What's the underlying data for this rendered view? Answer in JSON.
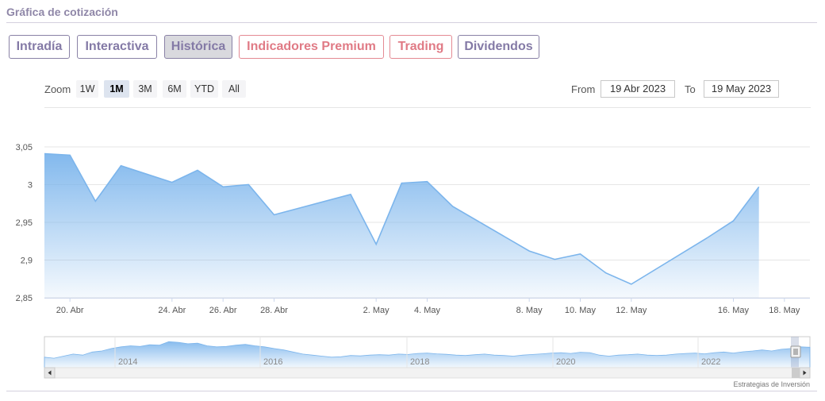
{
  "page": {
    "section_title": "Gráfica de cotización",
    "credit": "Estrategias de Inversión"
  },
  "tabs": [
    {
      "label": "Intradía",
      "color": "purple",
      "active": false
    },
    {
      "label": "Interactiva",
      "color": "purple",
      "active": false
    },
    {
      "label": "Histórica",
      "color": "purple",
      "active": true
    },
    {
      "label": "Indicadores Premium",
      "color": "red",
      "active": false
    },
    {
      "label": "Trading",
      "color": "red",
      "active": false
    },
    {
      "label": "Dividendos",
      "color": "purple",
      "active": false
    }
  ],
  "zoom": {
    "label": "Zoom",
    "buttons": [
      "1W",
      "1M",
      "3M",
      "6M",
      "YTD",
      "All"
    ],
    "active": "1M"
  },
  "range": {
    "from_label": "From",
    "from_value": "19 Abr 2023",
    "to_label": "To",
    "to_value": "19 May 2023"
  },
  "colors": {
    "line": "#7cb5ec",
    "fill_top": "#7cb5ec",
    "fill_bottom": "#ffffff",
    "grid": "#e6e6e6"
  },
  "chart_data": {
    "type": "area",
    "x_start": "2023-04-19",
    "x_end": "2023-05-19",
    "ylim": [
      2.85,
      3.05
    ],
    "yticks": [
      2.85,
      2.9,
      2.95,
      3,
      3.05
    ],
    "ytick_labels": [
      "2,85",
      "2,9",
      "2,95",
      "3",
      "3,05"
    ],
    "xticks": [
      {
        "date": "2023-04-20",
        "label": "20. Abr"
      },
      {
        "date": "2023-04-24",
        "label": "24. Abr"
      },
      {
        "date": "2023-04-26",
        "label": "26. Abr"
      },
      {
        "date": "2023-04-28",
        "label": "28. Abr"
      },
      {
        "date": "2023-05-02",
        "label": "2. May"
      },
      {
        "date": "2023-05-04",
        "label": "4. May"
      },
      {
        "date": "2023-05-08",
        "label": "8. May"
      },
      {
        "date": "2023-05-10",
        "label": "10. May"
      },
      {
        "date": "2023-05-12",
        "label": "12. May"
      },
      {
        "date": "2023-05-16",
        "label": "16. May"
      },
      {
        "date": "2023-05-18",
        "label": "18. May"
      }
    ],
    "series": [
      {
        "points": [
          [
            "2023-04-19",
            3.041
          ],
          [
            "2023-04-20",
            3.039
          ],
          [
            "2023-04-21",
            2.978
          ],
          [
            "2023-04-22",
            3.025
          ],
          [
            "2023-04-24",
            3.003
          ],
          [
            "2023-04-25",
            3.019
          ],
          [
            "2023-04-26",
            2.997
          ],
          [
            "2023-04-27",
            3.0
          ],
          [
            "2023-04-28",
            2.96
          ],
          [
            "2023-05-01",
            2.987
          ],
          [
            "2023-05-02",
            2.921
          ],
          [
            "2023-05-03",
            3.002
          ],
          [
            "2023-05-04",
            3.004
          ],
          [
            "2023-05-05",
            2.971
          ],
          [
            "2023-05-08",
            2.912
          ],
          [
            "2023-05-09",
            2.901
          ],
          [
            "2023-05-10",
            2.908
          ],
          [
            "2023-05-11",
            2.883
          ],
          [
            "2023-05-12",
            2.868
          ],
          [
            "2023-05-15",
            2.93
          ],
          [
            "2023-05-16",
            2.952
          ],
          [
            "2023-05-17",
            2.997
          ]
        ]
      }
    ]
  },
  "navigator": {
    "year_labels": [
      "2014",
      "2016",
      "2018",
      "2020",
      "2022"
    ],
    "values": [
      0.2,
      0.15,
      0.25,
      0.35,
      0.3,
      0.45,
      0.5,
      0.62,
      0.7,
      0.75,
      0.72,
      0.8,
      0.78,
      0.95,
      0.92,
      0.85,
      0.88,
      0.75,
      0.7,
      0.72,
      0.78,
      0.82,
      0.75,
      0.7,
      0.62,
      0.55,
      0.45,
      0.35,
      0.3,
      0.25,
      0.2,
      0.22,
      0.28,
      0.26,
      0.3,
      0.32,
      0.3,
      0.35,
      0.33,
      0.38,
      0.4,
      0.36,
      0.34,
      0.3,
      0.28,
      0.32,
      0.35,
      0.3,
      0.28,
      0.25,
      0.3,
      0.33,
      0.36,
      0.4,
      0.42,
      0.38,
      0.44,
      0.42,
      0.3,
      0.25,
      0.3,
      0.32,
      0.35,
      0.3,
      0.28,
      0.3,
      0.35,
      0.38,
      0.4,
      0.36,
      0.42,
      0.45,
      0.4,
      0.46,
      0.5,
      0.55,
      0.5,
      0.58,
      0.62,
      0.7,
      0.68
    ]
  }
}
